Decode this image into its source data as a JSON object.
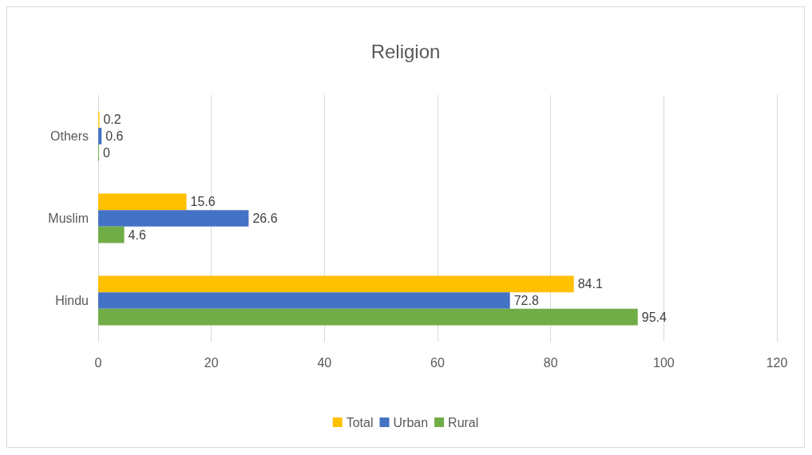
{
  "chart_data": {
    "type": "bar",
    "title": "Religion",
    "orientation": "horizontal",
    "categories": [
      "Others",
      "Muslim",
      "Hindu"
    ],
    "series": [
      {
        "name": "Total",
        "color": "#ffc000",
        "values": [
          0.2,
          15.6,
          84.1
        ]
      },
      {
        "name": "Urban",
        "color": "#4472c4",
        "values": [
          0.6,
          26.6,
          72.8
        ]
      },
      {
        "name": "Rural",
        "color": "#70ad47",
        "values": [
          0,
          4.6,
          95.4
        ]
      }
    ],
    "xlim": [
      0,
      120
    ],
    "xticks": [
      0,
      20,
      40,
      60,
      80,
      100,
      120
    ],
    "grid": "x",
    "legend": "bottom",
    "data_labels": true
  }
}
